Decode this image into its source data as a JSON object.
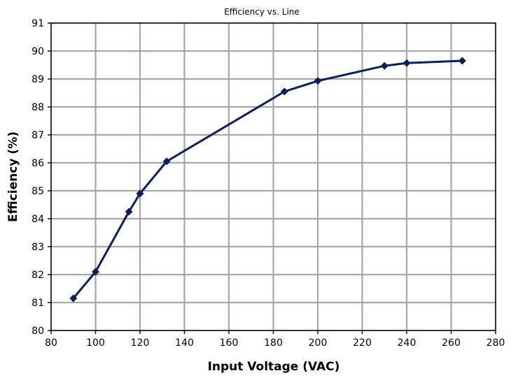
{
  "chart_data": {
    "type": "line",
    "title": "Efficiency vs. Line",
    "xlabel": "Input Voltage (VAC)",
    "ylabel": "Efficiency (%)",
    "xlim": [
      80,
      280
    ],
    "ylim": [
      80,
      91
    ],
    "xticks": [
      80,
      100,
      120,
      140,
      160,
      180,
      200,
      220,
      240,
      260,
      280
    ],
    "yticks": [
      80,
      81,
      82,
      83,
      84,
      85,
      86,
      87,
      88,
      89,
      90,
      91
    ],
    "grid": true,
    "legend": "none",
    "series": [
      {
        "color": "#0c1f5c",
        "marker": "diamond",
        "points": [
          {
            "x": 90,
            "y": 81.15
          },
          {
            "x": 100,
            "y": 82.1
          },
          {
            "x": 115,
            "y": 84.25
          },
          {
            "x": 120,
            "y": 84.9
          },
          {
            "x": 132,
            "y": 86.05
          },
          {
            "x": 185,
            "y": 88.55
          },
          {
            "x": 200,
            "y": 88.93
          },
          {
            "x": 230,
            "y": 89.47
          },
          {
            "x": 240,
            "y": 89.57
          },
          {
            "x": 265,
            "y": 89.65
          }
        ]
      }
    ]
  }
}
